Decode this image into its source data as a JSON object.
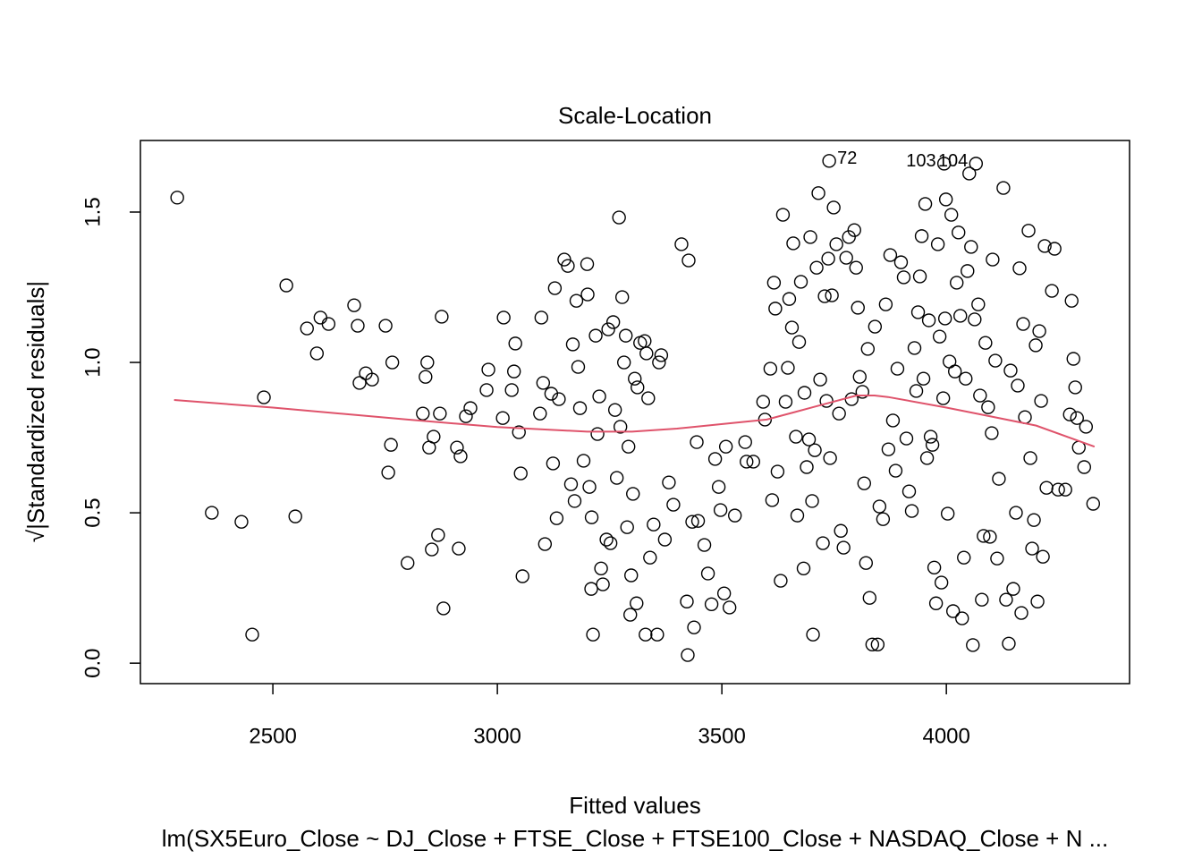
{
  "chart_data": {
    "type": "scatter",
    "title": "Scale-Location",
    "x_label": "Fitted values",
    "y_label": "√|Standardized residuals|",
    "caption": "lm(SX5Euro_Close ~ DJ_Close + FTSE_Close + FTSE100_Close + NASDAQ_Close + N ...",
    "xlim": [
      2205,
      4408
    ],
    "ylim": [
      -0.068,
      1.738
    ],
    "xticks": [
      2500,
      3000,
      3500,
      4000
    ],
    "yticks": [
      {
        "value": 0,
        "label": "0.0"
      },
      0.5,
      {
        "value": 1,
        "label": "1.0"
      },
      1.5
    ],
    "grid": false,
    "series": [
      {
        "type": "scatter",
        "color": "#000000",
        "x": [
          2287,
          2364,
          2430,
          2454,
          2480,
          2530,
          2550,
          2576,
          2598,
          2606,
          2624,
          2681,
          2689,
          2693,
          2707,
          2721,
          2751,
          2757,
          2763,
          2766,
          2800,
          2834,
          2840,
          2844,
          2848,
          2854,
          2858,
          2868,
          2872,
          2876,
          2880,
          2910,
          2914,
          2918,
          2930,
          2940,
          2976,
          2980,
          3012,
          3014,
          3032,
          3037,
          3040,
          3048,
          3052,
          3056,
          3095,
          3098,
          3102,
          3106,
          3120,
          3124,
          3128,
          3132,
          3137,
          3149,
          3157,
          3164,
          3168,
          3172,
          3176,
          3180,
          3184,
          3192,
          3200,
          3201,
          3205,
          3209,
          3210,
          3213,
          3219,
          3223,
          3227,
          3231,
          3235,
          3243,
          3247,
          3252,
          3258,
          3262,
          3266,
          3271,
          3274,
          3278,
          3282,
          3286,
          3289,
          3292,
          3296,
          3298,
          3302,
          3306,
          3310,
          3312,
          3318,
          3328,
          3330,
          3332,
          3336,
          3340,
          3348,
          3356,
          3360,
          3365,
          3373,
          3382,
          3392,
          3410,
          3422,
          3424,
          3426,
          3434,
          3438,
          3444,
          3447,
          3461,
          3469,
          3477,
          3485,
          3493,
          3497,
          3505,
          3509,
          3517,
          3529,
          3552,
          3555,
          3570,
          3592,
          3596,
          3608,
          3612,
          3616,
          3619,
          3624,
          3631,
          3636,
          3642,
          3647,
          3650,
          3656,
          3659,
          3665,
          3668,
          3672,
          3676,
          3682,
          3684,
          3689,
          3694,
          3697,
          3701,
          3703,
          3707,
          3711,
          3715,
          3719,
          3725,
          3729,
          3733,
          3737,
          3741,
          3745,
          3739,
          3749,
          3755,
          3761,
          3765,
          3771,
          3777,
          3783,
          3789,
          3795,
          3799,
          3803,
          3807,
          3813,
          3817,
          3821,
          3825,
          3829,
          3835,
          3841,
          3847,
          3851,
          3859,
          3865,
          3871,
          3875,
          3881,
          3887,
          3891,
          3899,
          3905,
          3911,
          3917,
          3923,
          3929,
          3933,
          3937,
          3941,
          3945,
          3949,
          3953,
          3957,
          3961,
          3965,
          3969,
          3973,
          3977,
          3981,
          3985,
          3989,
          3993,
          3997,
          3995,
          3999,
          4003,
          4007,
          4011,
          4015,
          4019,
          4023,
          4027,
          4031,
          4035,
          4039,
          4043,
          4047,
          4051,
          4055,
          4059,
          4063,
          4066,
          4071,
          4075,
          4079,
          4083,
          4087,
          4093,
          4097,
          4101,
          4103,
          4109,
          4113,
          4117,
          4127,
          4133,
          4139,
          4143,
          4149,
          4155,
          4159,
          4163,
          4167,
          4171,
          4175,
          4183,
          4187,
          4191,
          4195,
          4199,
          4203,
          4207,
          4211,
          4215,
          4219,
          4223,
          4235,
          4241,
          4249,
          4265,
          4275,
          4279,
          4283,
          4287,
          4291,
          4295,
          4307,
          4311,
          4327
        ],
        "values": [
          1.548,
          0.5,
          0.47,
          0.095,
          0.884,
          1.256,
          0.488,
          1.113,
          1.03,
          1.149,
          1.128,
          1.19,
          1.122,
          0.932,
          0.964,
          0.943,
          1.122,
          0.634,
          0.726,
          1.0,
          0.333,
          0.83,
          0.952,
          1.0,
          0.717,
          0.378,
          0.753,
          0.426,
          0.83,
          1.152,
          0.182,
          0.717,
          0.381,
          0.688,
          0.821,
          0.848,
          0.908,
          0.976,
          0.815,
          1.149,
          0.908,
          0.97,
          1.063,
          0.768,
          0.631,
          0.289,
          0.83,
          1.149,
          0.932,
          0.396,
          0.896,
          0.664,
          1.247,
          0.482,
          0.878,
          1.342,
          1.321,
          0.595,
          1.06,
          0.539,
          1.205,
          0.985,
          0.848,
          0.673,
          1.327,
          1.226,
          0.586,
          0.247,
          0.485,
          0.095,
          1.089,
          0.762,
          0.887,
          0.315,
          0.262,
          0.411,
          1.11,
          0.399,
          1.134,
          0.842,
          0.616,
          1.482,
          0.786,
          1.217,
          1.0,
          1.089,
          0.452,
          0.72,
          0.161,
          0.292,
          0.563,
          0.946,
          0.199,
          0.917,
          1.065,
          1.071,
          0.095,
          1.03,
          0.881,
          0.351,
          0.461,
          0.095,
          1.0,
          1.024,
          0.411,
          0.601,
          0.527,
          1.393,
          0.205,
          0.027,
          1.339,
          0.47,
          0.119,
          0.735,
          0.473,
          0.393,
          0.298,
          0.196,
          0.679,
          0.586,
          0.509,
          0.232,
          0.72,
          0.185,
          0.491,
          0.735,
          0.67,
          0.67,
          0.869,
          0.81,
          0.979,
          0.542,
          1.265,
          1.179,
          0.637,
          0.274,
          1.491,
          0.869,
          0.982,
          1.211,
          1.116,
          1.396,
          0.753,
          0.491,
          1.068,
          1.268,
          0.315,
          0.899,
          0.652,
          0.744,
          1.417,
          0.539,
          0.095,
          0.708,
          1.315,
          1.563,
          0.943,
          0.399,
          1.22,
          0.872,
          1.345,
          0.682,
          1.223,
          1.67,
          1.515,
          1.393,
          0.83,
          0.44,
          0.384,
          1.348,
          1.417,
          0.878,
          1.44,
          1.315,
          1.182,
          0.952,
          0.902,
          0.598,
          0.333,
          1.045,
          0.217,
          0.062,
          1.119,
          0.062,
          0.521,
          0.479,
          1.193,
          0.711,
          1.357,
          0.807,
          0.64,
          0.979,
          1.333,
          1.283,
          0.747,
          0.571,
          0.506,
          1.048,
          0.905,
          1.167,
          1.286,
          1.42,
          0.946,
          1.527,
          0.682,
          1.14,
          0.753,
          0.726,
          0.318,
          0.199,
          1.393,
          1.086,
          0.268,
          0.881,
          1.146,
          1.661,
          1.542,
          0.497,
          1.003,
          1.491,
          0.173,
          0.97,
          1.265,
          1.432,
          1.155,
          0.149,
          0.351,
          0.946,
          1.304,
          1.628,
          1.384,
          0.06,
          1.143,
          1.661,
          1.193,
          0.89,
          0.211,
          0.423,
          1.065,
          0.851,
          0.42,
          0.765,
          1.342,
          1.006,
          0.348,
          0.613,
          1.58,
          0.211,
          0.065,
          0.973,
          0.247,
          0.5,
          0.923,
          1.313,
          0.167,
          1.128,
          0.818,
          1.438,
          0.682,
          0.381,
          0.476,
          1.057,
          0.205,
          1.104,
          0.872,
          0.354,
          1.387,
          0.583,
          1.238,
          1.378,
          0.577,
          0.577,
          0.827,
          1.205,
          1.012,
          0.917,
          0.815,
          0.717,
          0.652,
          0.786,
          0.53
        ]
      },
      {
        "type": "line",
        "color": "#df536b",
        "x": [
          2280,
          2500,
          2800,
          3000,
          3200,
          3300,
          3400,
          3600,
          3700,
          3800,
          3840,
          3870,
          4000,
          4100,
          4200,
          4330
        ],
        "values": [
          0.875,
          0.85,
          0.81,
          0.785,
          0.77,
          0.77,
          0.78,
          0.81,
          0.85,
          0.89,
          0.89,
          0.885,
          0.85,
          0.82,
          0.79,
          0.72
        ]
      }
    ],
    "annotations": [
      {
        "text": "72",
        "x": 3739,
        "y": 1.67,
        "side": "right"
      },
      {
        "text": "103",
        "x": 3995,
        "y": 1.661,
        "side": "left"
      },
      {
        "text": "104",
        "x": 4066,
        "y": 1.661,
        "side": "left"
      }
    ]
  }
}
